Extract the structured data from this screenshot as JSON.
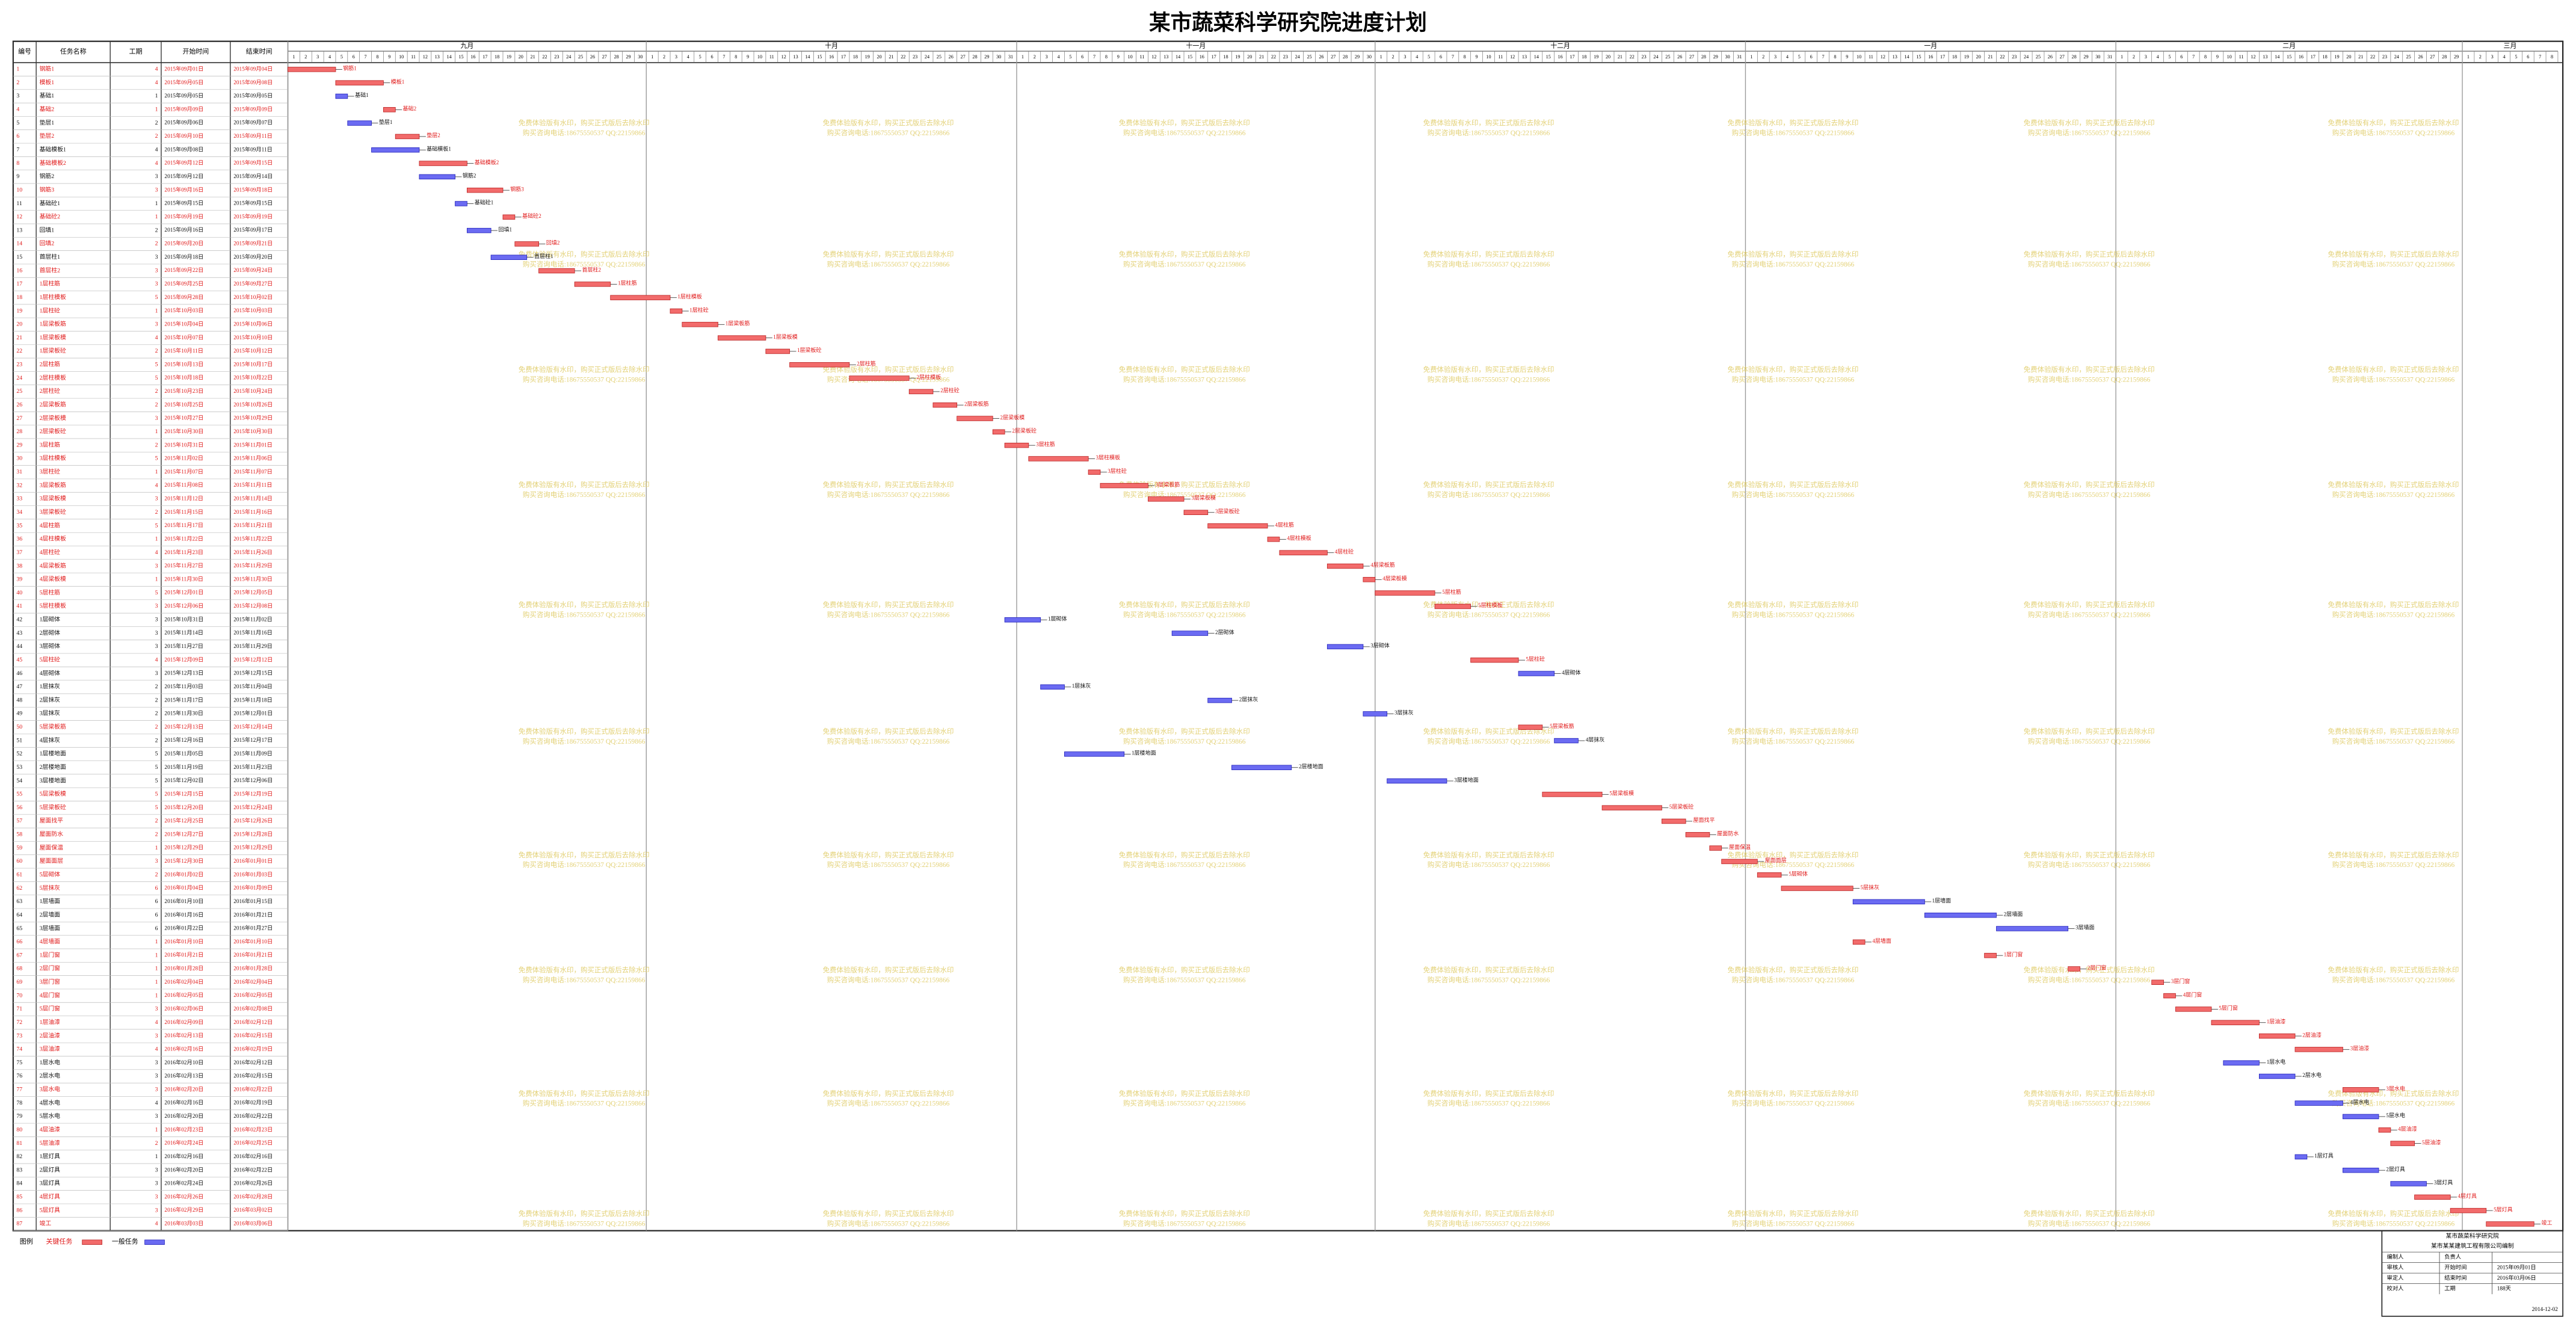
{
  "chart_data": {
    "type": "gantt",
    "title": "某市蔬菜科学研究院进度计划",
    "columns": [
      "编号",
      "任务名称",
      "工期",
      "开始时间",
      "结束时间"
    ],
    "months": [
      {
        "name": "九月",
        "days": [
          1,
          2,
          3,
          4,
          5,
          6,
          7,
          8,
          9,
          10,
          11,
          12,
          13,
          14,
          15,
          16,
          17,
          18,
          19,
          20,
          21,
          22,
          23,
          24,
          25,
          26,
          27,
          28,
          29,
          30
        ]
      },
      {
        "name": "十月",
        "days": [
          1,
          2,
          3,
          4,
          5,
          6,
          7,
          8,
          9,
          10,
          11,
          12,
          13,
          14,
          15,
          16,
          17,
          18,
          19,
          20,
          21,
          22,
          23,
          24,
          25,
          26,
          27,
          28,
          29,
          30,
          31
        ]
      },
      {
        "name": "十一月",
        "days": [
          1,
          2,
          3,
          4,
          5,
          6,
          7,
          8,
          9,
          10,
          11,
          12,
          13,
          14,
          15,
          16,
          17,
          18,
          19,
          20,
          21,
          22,
          23,
          24,
          25,
          26,
          27,
          28,
          29,
          30
        ]
      },
      {
        "name": "十二月",
        "days": [
          1,
          2,
          3,
          4,
          5,
          6,
          7,
          8,
          9,
          10,
          11,
          12,
          13,
          14,
          15,
          16,
          17,
          18,
          19,
          20,
          21,
          22,
          23,
          24,
          25,
          26,
          27,
          28,
          29,
          30,
          31
        ]
      },
      {
        "name": "一月",
        "days": [
          1,
          2,
          3,
          4,
          5,
          6,
          7,
          8,
          9,
          10,
          11,
          12,
          13,
          14,
          15,
          16,
          17,
          18,
          19,
          20,
          21,
          22,
          23,
          24,
          25,
          26,
          27,
          28,
          29,
          30,
          31
        ]
      },
      {
        "name": "二月",
        "days": [
          1,
          2,
          3,
          4,
          5,
          6,
          7,
          8,
          9,
          10,
          11,
          12,
          13,
          14,
          15,
          16,
          17,
          18,
          19,
          20,
          21,
          22,
          23,
          24,
          25,
          26,
          27,
          28,
          29
        ]
      },
      {
        "name": "三月",
        "days": [
          1,
          2,
          3,
          4,
          5,
          6,
          7,
          8
        ]
      }
    ],
    "rows": [
      [
        1,
        "钢筋1",
        4,
        "2015年09月01日",
        "2015年09月04日"
      ],
      [
        2,
        "模板1",
        4,
        "2015年09月05日",
        "2015年09月08日"
      ],
      [
        3,
        "基础1",
        1,
        "2015年09月05日",
        "2015年09月05日"
      ],
      [
        4,
        "基础2",
        1,
        "2015年09月09日",
        "2015年09月09日"
      ],
      [
        5,
        "垫层1",
        2,
        "2015年09月06日",
        "2015年09月07日"
      ],
      [
        6,
        "垫层2",
        2,
        "2015年09月10日",
        "2015年09月11日"
      ],
      [
        7,
        "基础模板1",
        4,
        "2015年09月08日",
        "2015年09月11日"
      ],
      [
        8,
        "基础模板2",
        4,
        "2015年09月12日",
        "2015年09月15日"
      ],
      [
        9,
        "钢筋2",
        3,
        "2015年09月12日",
        "2015年09月14日"
      ],
      [
        10,
        "钢筋3",
        3,
        "2015年09月16日",
        "2015年09月18日"
      ],
      [
        11,
        "基础砼1",
        1,
        "2015年09月15日",
        "2015年09月15日"
      ],
      [
        12,
        "基础砼2",
        1,
        "2015年09月19日",
        "2015年09月19日"
      ],
      [
        13,
        "回填1",
        2,
        "2015年09月16日",
        "2015年09月17日"
      ],
      [
        14,
        "回填2",
        2,
        "2015年09月20日",
        "2015年09月21日"
      ],
      [
        15,
        "首层柱1",
        3,
        "2015年09月18日",
        "2015年09月20日"
      ],
      [
        16,
        "首层柱2",
        3,
        "2015年09月22日",
        "2015年09月24日"
      ],
      [
        17,
        "1层柱筋",
        3,
        "2015年09月25日",
        "2015年09月27日"
      ],
      [
        18,
        "1层柱模板",
        5,
        "2015年09月28日",
        "2015年10月02日"
      ],
      [
        19,
        "1层柱砼",
        1,
        "2015年10月03日",
        "2015年10月03日"
      ],
      [
        20,
        "1层梁板筋",
        3,
        "2015年10月04日",
        "2015年10月06日"
      ],
      [
        21,
        "1层梁板模",
        4,
        "2015年10月07日",
        "2015年10月10日"
      ],
      [
        22,
        "1层梁板砼",
        2,
        "2015年10月11日",
        "2015年10月12日"
      ],
      [
        23,
        "2层柱筋",
        5,
        "2015年10月13日",
        "2015年10月17日"
      ],
      [
        24,
        "2层柱模板",
        5,
        "2015年10月18日",
        "2015年10月22日"
      ],
      [
        25,
        "2层柱砼",
        2,
        "2015年10月23日",
        "2015年10月24日"
      ],
      [
        26,
        "2层梁板筋",
        2,
        "2015年10月25日",
        "2015年10月26日"
      ],
      [
        27,
        "2层梁板模",
        3,
        "2015年10月27日",
        "2015年10月29日"
      ],
      [
        28,
        "2层梁板砼",
        1,
        "2015年10月30日",
        "2015年10月30日"
      ],
      [
        29,
        "3层柱筋",
        2,
        "2015年10月31日",
        "2015年11月01日"
      ],
      [
        30,
        "3层柱模板",
        5,
        "2015年11月02日",
        "2015年11月06日"
      ],
      [
        31,
        "3层柱砼",
        1,
        "2015年11月07日",
        "2015年11月07日"
      ],
      [
        32,
        "3层梁板筋",
        4,
        "2015年11月08日",
        "2015年11月11日"
      ],
      [
        33,
        "3层梁板模",
        3,
        "2015年11月12日",
        "2015年11月14日"
      ],
      [
        34,
        "3层梁板砼",
        2,
        "2015年11月15日",
        "2015年11月16日"
      ],
      [
        35,
        "4层柱筋",
        5,
        "2015年11月17日",
        "2015年11月21日"
      ],
      [
        36,
        "4层柱模板",
        1,
        "2015年11月22日",
        "2015年11月22日"
      ],
      [
        37,
        "4层柱砼",
        4,
        "2015年11月23日",
        "2015年11月26日"
      ],
      [
        38,
        "4层梁板筋",
        3,
        "2015年11月27日",
        "2015年11月29日"
      ],
      [
        39,
        "4层梁板模",
        1,
        "2015年11月30日",
        "2015年11月30日"
      ],
      [
        40,
        "5层柱筋",
        5,
        "2015年12月01日",
        "2015年12月05日"
      ],
      [
        41,
        "5层柱模板",
        3,
        "2015年12月06日",
        "2015年12月08日"
      ],
      [
        42,
        "1层砌体",
        3,
        "2015年10月31日",
        "2015年11月02日"
      ],
      [
        43,
        "2层砌体",
        3,
        "2015年11月14日",
        "2015年11月16日"
      ],
      [
        44,
        "3层砌体",
        3,
        "2015年11月27日",
        "2015年11月29日"
      ],
      [
        45,
        "5层柱砼",
        4,
        "2015年12月09日",
        "2015年12月12日"
      ],
      [
        46,
        "4层砌体",
        3,
        "2015年12月13日",
        "2015年12月15日"
      ],
      [
        47,
        "1层抹灰",
        2,
        "2015年11月03日",
        "2015年11月04日"
      ],
      [
        48,
        "2层抹灰",
        2,
        "2015年11月17日",
        "2015年11月18日"
      ],
      [
        49,
        "3层抹灰",
        2,
        "2015年11月30日",
        "2015年12月01日"
      ],
      [
        50,
        "5层梁板筋",
        2,
        "2015年12月13日",
        "2015年12月14日"
      ],
      [
        51,
        "4层抹灰",
        2,
        "2015年12月16日",
        "2015年12月17日"
      ],
      [
        52,
        "1层楼地面",
        5,
        "2015年11月05日",
        "2015年11月09日"
      ],
      [
        53,
        "2层楼地面",
        5,
        "2015年11月19日",
        "2015年11月23日"
      ],
      [
        54,
        "3层楼地面",
        5,
        "2015年12月02日",
        "2015年12月06日"
      ],
      [
        55,
        "5层梁板模",
        5,
        "2015年12月15日",
        "2015年12月19日"
      ],
      [
        56,
        "5层梁板砼",
        5,
        "2015年12月20日",
        "2015年12月24日"
      ],
      [
        57,
        "屋面找平",
        2,
        "2015年12月25日",
        "2015年12月26日"
      ],
      [
        58,
        "屋面防水",
        2,
        "2015年12月27日",
        "2015年12月28日"
      ],
      [
        59,
        "屋面保温",
        1,
        "2015年12月29日",
        "2015年12月29日"
      ],
      [
        60,
        "屋面面层",
        3,
        "2015年12月30日",
        "2016年01月01日"
      ],
      [
        61,
        "5层砌体",
        2,
        "2016年01月02日",
        "2016年01月03日"
      ],
      [
        62,
        "5层抹灰",
        6,
        "2016年01月04日",
        "2016年01月09日"
      ],
      [
        63,
        "1层墙面",
        6,
        "2016年01月10日",
        "2016年01月15日"
      ],
      [
        64,
        "2层墙面",
        6,
        "2016年01月16日",
        "2016年01月21日"
      ],
      [
        65,
        "3层墙面",
        6,
        "2016年01月22日",
        "2016年01月27日"
      ],
      [
        66,
        "4层墙面",
        1,
        "2016年01月10日",
        "2016年01月10日"
      ],
      [
        67,
        "1层门窗",
        1,
        "2016年01月21日",
        "2016年01月21日"
      ],
      [
        68,
        "2层门窗",
        1,
        "2016年01月28日",
        "2016年01月28日"
      ],
      [
        69,
        "3层门窗",
        1,
        "2016年02月04日",
        "2016年02月04日"
      ],
      [
        70,
        "4层门窗",
        1,
        "2016年02月05日",
        "2016年02月05日"
      ],
      [
        71,
        "5层门窗",
        3,
        "2016年02月06日",
        "2016年02月08日"
      ],
      [
        72,
        "1层油漆",
        4,
        "2016年02月09日",
        "2016年02月12日"
      ],
      [
        73,
        "2层油漆",
        3,
        "2016年02月13日",
        "2016年02月15日"
      ],
      [
        74,
        "3层油漆",
        4,
        "2016年02月16日",
        "2016年02月19日"
      ],
      [
        75,
        "1层水电",
        3,
        "2016年02月10日",
        "2016年02月12日"
      ],
      [
        76,
        "2层水电",
        3,
        "2016年02月13日",
        "2016年02月15日"
      ],
      [
        77,
        "3层水电",
        3,
        "2016年02月20日",
        "2016年02月22日"
      ],
      [
        78,
        "4层水电",
        4,
        "2016年02月16日",
        "2016年02月19日"
      ],
      [
        79,
        "5层水电",
        3,
        "2016年02月20日",
        "2016年02月22日"
      ],
      [
        80,
        "4层油漆",
        1,
        "2016年02月23日",
        "2016年02月23日"
      ],
      [
        81,
        "5层油漆",
        2,
        "2016年02月24日",
        "2016年02月25日"
      ],
      [
        82,
        "1层灯具",
        1,
        "2016年02月16日",
        "2016年02月16日"
      ],
      [
        83,
        "2层灯具",
        3,
        "2016年02月20日",
        "2016年02月22日"
      ],
      [
        84,
        "3层灯具",
        3,
        "2016年02月24日",
        "2016年02月26日"
      ],
      [
        85,
        "4层灯具",
        3,
        "2016年02月26日",
        "2016年02月28日"
      ],
      [
        86,
        "5层灯具",
        3,
        "2016年02月29日",
        "2016年03月02日"
      ],
      [
        87,
        "竣工",
        4,
        "2016年03月03日",
        "2016年03月06日"
      ]
    ],
    "critical": [
      true,
      true,
      false,
      true,
      false,
      true,
      false,
      true,
      false,
      true,
      false,
      true,
      false,
      true,
      false,
      true,
      true,
      true,
      true,
      true,
      true,
      true,
      true,
      true,
      true,
      true,
      true,
      true,
      true,
      true,
      true,
      true,
      true,
      true,
      true,
      true,
      true,
      true,
      true,
      true,
      true,
      false,
      false,
      false,
      true,
      false,
      false,
      false,
      false,
      true,
      false,
      false,
      false,
      false,
      true,
      true,
      true,
      true,
      true,
      true,
      true,
      true,
      false,
      false,
      false,
      true,
      true,
      true,
      true,
      true,
      true,
      true,
      true,
      true,
      false,
      false,
      true,
      false,
      false,
      true,
      true,
      false,
      false,
      false,
      true,
      true,
      true
    ],
    "legend": {
      "title": "图例",
      "critical": "关键任务",
      "normal": "一般任务"
    },
    "colors": {
      "critical": "#f26b6b",
      "normal": "#6b6bf2",
      "critical_text": "#e01818",
      "normal_text": "#111111"
    },
    "watermark": [
      "免费体验版有水印，购买正式版后去除水印",
      "购买咨询电话:18675550537 QQ:22159866"
    ],
    "footer": {
      "title": "某市蔬菜科学研究院",
      "subtitle": "某市某某建筑工程有限公司编制",
      "cells": [
        [
          "编制人",
          "负责人"
        ],
        [
          "审核人",
          "开始时间",
          "2015年09月01日"
        ],
        [
          "审定人",
          "结束时间",
          "2016年03月06日"
        ],
        [
          "校对人",
          "工期",
          "188天"
        ]
      ],
      "date": "2014-12-02"
    }
  }
}
